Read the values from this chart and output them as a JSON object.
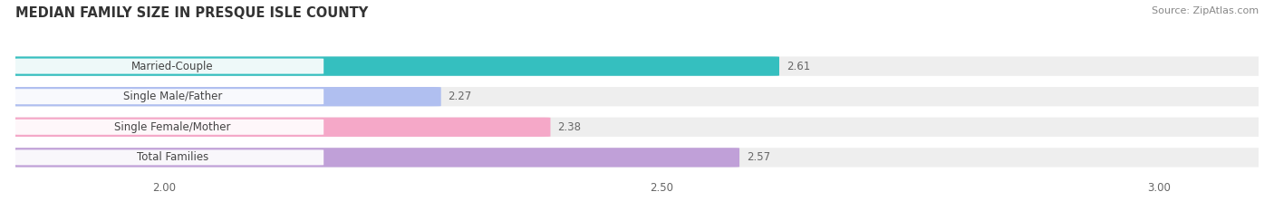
{
  "title": "MEDIAN FAMILY SIZE IN PRESQUE ISLE COUNTY",
  "source": "Source: ZipAtlas.com",
  "categories": [
    "Married-Couple",
    "Single Male/Father",
    "Single Female/Mother",
    "Total Families"
  ],
  "values": [
    2.61,
    2.27,
    2.38,
    2.57
  ],
  "bar_colors": [
    "#35bfbf",
    "#b0bff0",
    "#f5a8c8",
    "#c0a0d8"
  ],
  "xlim": [
    1.85,
    3.1
  ],
  "xticks": [
    2.0,
    2.5,
    3.0
  ],
  "background_color": "#ffffff",
  "bar_background_color": "#eeeeee",
  "title_fontsize": 10.5,
  "label_fontsize": 8.5,
  "value_fontsize": 8.5,
  "source_fontsize": 8,
  "bar_height": 0.62,
  "bar_gap": 0.18
}
